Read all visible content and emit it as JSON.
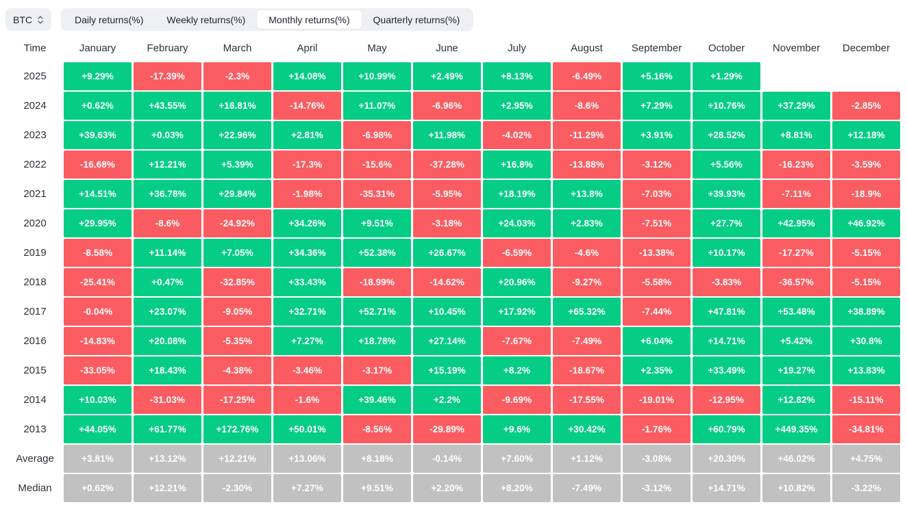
{
  "toolbar": {
    "symbol_select": {
      "value": "BTC",
      "icon": "updown-chevron-icon"
    },
    "tabs": [
      {
        "label": "Daily returns(%)",
        "active": false
      },
      {
        "label": "Weekly returns(%)",
        "active": false
      },
      {
        "label": "Monthly returns(%)",
        "active": true
      },
      {
        "label": "Quarterly returns(%)",
        "active": false
      }
    ]
  },
  "table": {
    "time_header": "Time",
    "months": [
      "January",
      "February",
      "March",
      "April",
      "May",
      "June",
      "July",
      "August",
      "September",
      "October",
      "November",
      "December"
    ],
    "rows": [
      {
        "label": "2025",
        "type": "year",
        "values": [
          "+9.29%",
          "-17.39%",
          "-2.3%",
          "+14.08%",
          "+10.99%",
          "+2.49%",
          "+8.13%",
          "-6.49%",
          "+5.16%",
          "+1.29%",
          "",
          ""
        ]
      },
      {
        "label": "2024",
        "type": "year",
        "values": [
          "+0.62%",
          "+43.55%",
          "+16.81%",
          "-14.76%",
          "+11.07%",
          "-6.96%",
          "+2.95%",
          "-8.6%",
          "+7.29%",
          "+10.76%",
          "+37.29%",
          "-2.85%"
        ]
      },
      {
        "label": "2023",
        "type": "year",
        "values": [
          "+39.63%",
          "+0.03%",
          "+22.96%",
          "+2.81%",
          "-6.98%",
          "+11.98%",
          "-4.02%",
          "-11.29%",
          "+3.91%",
          "+28.52%",
          "+8.81%",
          "+12.18%"
        ]
      },
      {
        "label": "2022",
        "type": "year",
        "values": [
          "-16.68%",
          "+12.21%",
          "+5.39%",
          "-17.3%",
          "-15.6%",
          "-37.28%",
          "+16.8%",
          "-13.88%",
          "-3.12%",
          "+5.56%",
          "-16.23%",
          "-3.59%"
        ]
      },
      {
        "label": "2021",
        "type": "year",
        "values": [
          "+14.51%",
          "+36.78%",
          "+29.84%",
          "-1.98%",
          "-35.31%",
          "-5.95%",
          "+18.19%",
          "+13.8%",
          "-7.03%",
          "+39.93%",
          "-7.11%",
          "-18.9%"
        ]
      },
      {
        "label": "2020",
        "type": "year",
        "values": [
          "+29.95%",
          "-8.6%",
          "-24.92%",
          "+34.26%",
          "+9.51%",
          "-3.18%",
          "+24.03%",
          "+2.83%",
          "-7.51%",
          "+27.7%",
          "+42.95%",
          "+46.92%"
        ]
      },
      {
        "label": "2019",
        "type": "year",
        "values": [
          "-8.58%",
          "+11.14%",
          "+7.05%",
          "+34.36%",
          "+52.38%",
          "+26.67%",
          "-6.59%",
          "-4.6%",
          "-13.38%",
          "+10.17%",
          "-17.27%",
          "-5.15%"
        ]
      },
      {
        "label": "2018",
        "type": "year",
        "values": [
          "-25.41%",
          "+0.47%",
          "-32.85%",
          "+33.43%",
          "-18.99%",
          "-14.62%",
          "+20.96%",
          "-9.27%",
          "-5.58%",
          "-3.83%",
          "-36.57%",
          "-5.15%"
        ]
      },
      {
        "label": "2017",
        "type": "year",
        "values": [
          "-0.04%",
          "+23.07%",
          "-9.05%",
          "+32.71%",
          "+52.71%",
          "+10.45%",
          "+17.92%",
          "+65.32%",
          "-7.44%",
          "+47.81%",
          "+53.48%",
          "+38.89%"
        ]
      },
      {
        "label": "2016",
        "type": "year",
        "values": [
          "-14.83%",
          "+20.08%",
          "-5.35%",
          "+7.27%",
          "+18.78%",
          "+27.14%",
          "-7.67%",
          "-7.49%",
          "+6.04%",
          "+14.71%",
          "+5.42%",
          "+30.8%"
        ]
      },
      {
        "label": "2015",
        "type": "year",
        "values": [
          "-33.05%",
          "+18.43%",
          "-4.38%",
          "-3.46%",
          "-3.17%",
          "+15.19%",
          "+8.2%",
          "-18.67%",
          "+2.35%",
          "+33.49%",
          "+19.27%",
          "+13.83%"
        ]
      },
      {
        "label": "2014",
        "type": "year",
        "values": [
          "+10.03%",
          "-31.03%",
          "-17.25%",
          "-1.6%",
          "+39.46%",
          "+2.2%",
          "-9.69%",
          "-17.55%",
          "-19.01%",
          "-12.95%",
          "+12.82%",
          "-15.11%"
        ]
      },
      {
        "label": "2013",
        "type": "year",
        "values": [
          "+44.05%",
          "+61.77%",
          "+172.76%",
          "+50.01%",
          "-8.56%",
          "-29.89%",
          "+9.6%",
          "+30.42%",
          "-1.76%",
          "+60.79%",
          "+449.35%",
          "-34.81%"
        ]
      },
      {
        "label": "Average",
        "type": "summary",
        "values": [
          "+3.81%",
          "+13.12%",
          "+12.21%",
          "+13.06%",
          "+8.18%",
          "-0.14%",
          "+7.60%",
          "+1.12%",
          "-3.08%",
          "+20.30%",
          "+46.02%",
          "+4.75%"
        ]
      },
      {
        "label": "Median",
        "type": "summary",
        "values": [
          "+0.62%",
          "+12.21%",
          "-2.30%",
          "+7.27%",
          "+9.51%",
          "+2.20%",
          "+8.20%",
          "-7.49%",
          "-3.12%",
          "+14.71%",
          "+10.82%",
          "-3.22%"
        ]
      }
    ]
  },
  "colors": {
    "positive": "#06cd85",
    "negative": "#fa5c61",
    "neutral": "#c1c1c1",
    "toolbar_bg": "#eef0f4",
    "text": "#2c313a"
  }
}
